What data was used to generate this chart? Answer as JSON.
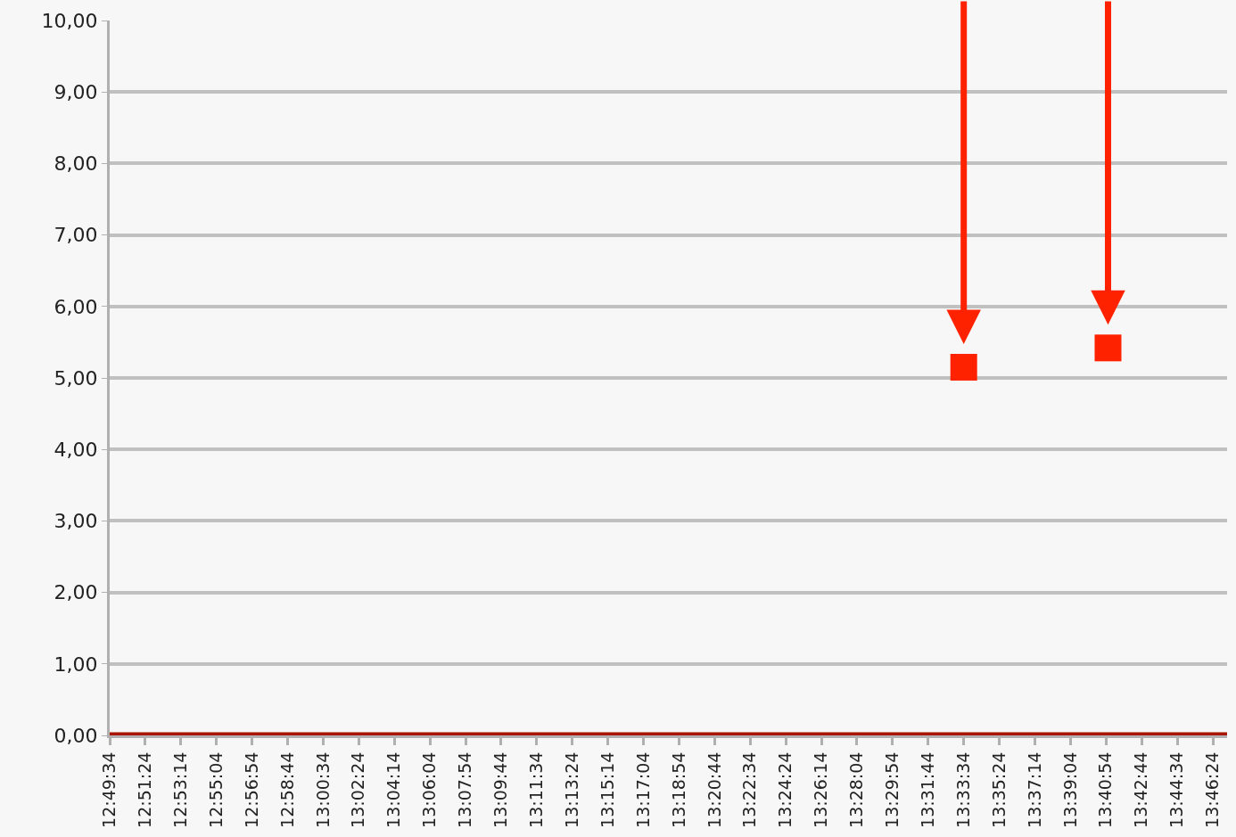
{
  "chart_data": {
    "type": "scatter",
    "series": [
      {
        "type": "line",
        "color": "#aa1500",
        "marker": "none",
        "line_style": "solid",
        "x": [
          12.82611,
          13.78556
        ],
        "values": [
          0,
          0
        ]
      },
      {
        "color": "#ff2200",
        "marker": "square",
        "x": [
          13.55944,
          13.68333
        ],
        "values": [
          5.15,
          5.42
        ]
      }
    ],
    "xlim": [
      12.82611,
      13.78556
    ],
    "xticks": [
      {
        "value": 12.82611,
        "label": "12:49:34"
      },
      {
        "value": 12.85667,
        "label": "12:51:24"
      },
      {
        "value": 12.88722,
        "label": "12:53:14"
      },
      {
        "value": 12.91778,
        "label": "12:55:04"
      },
      {
        "value": 12.94833,
        "label": "12:56:54"
      },
      {
        "value": 12.97889,
        "label": "12:58:44"
      },
      {
        "value": 13.00944,
        "label": "13:00:34"
      },
      {
        "value": 13.04,
        "label": "13:02:24"
      },
      {
        "value": 13.07056,
        "label": "13:04:14"
      },
      {
        "value": 13.10111,
        "label": "13:06:04"
      },
      {
        "value": 13.13167,
        "label": "13:07:54"
      },
      {
        "value": 13.16222,
        "label": "13:09:44"
      },
      {
        "value": 13.19278,
        "label": "13:11:34"
      },
      {
        "value": 13.22333,
        "label": "13:13:24"
      },
      {
        "value": 13.25389,
        "label": "13:15:14"
      },
      {
        "value": 13.28444,
        "label": "13:17:04"
      },
      {
        "value": 13.315,
        "label": "13:18:54"
      },
      {
        "value": 13.34556,
        "label": "13:20:44"
      },
      {
        "value": 13.37611,
        "label": "13:22:34"
      },
      {
        "value": 13.40667,
        "label": "13:24:24"
      },
      {
        "value": 13.43722,
        "label": "13:26:14"
      },
      {
        "value": 13.46778,
        "label": "13:28:04"
      },
      {
        "value": 13.49833,
        "label": "13:29:54"
      },
      {
        "value": 13.52889,
        "label": "13:31:44"
      },
      {
        "value": 13.55944,
        "label": "13:33:34"
      },
      {
        "value": 13.59,
        "label": "13:35:24"
      },
      {
        "value": 13.62056,
        "label": "13:37:14"
      },
      {
        "value": 13.65111,
        "label": "13:39:04"
      },
      {
        "value": 13.68167,
        "label": "13:40:54"
      },
      {
        "value": 13.71222,
        "label": "13:42:44"
      },
      {
        "value": 13.74278,
        "label": "13:44:34"
      },
      {
        "value": 13.77333,
        "label": "13:46:24"
      }
    ],
    "ylim": [
      0,
      10
    ],
    "yticks": [
      {
        "value": 0,
        "label": "0,00"
      },
      {
        "value": 1,
        "label": "1,00"
      },
      {
        "value": 2,
        "label": "2,00"
      },
      {
        "value": 3,
        "label": "3,00"
      },
      {
        "value": 4,
        "label": "4,00"
      },
      {
        "value": 5,
        "label": "5,00"
      },
      {
        "value": 6,
        "label": "6,00"
      },
      {
        "value": 7,
        "label": "7,00"
      },
      {
        "value": 8,
        "label": "8,00"
      },
      {
        "value": 9,
        "label": "9,00"
      },
      {
        "value": 10,
        "label": "10,00"
      }
    ],
    "grid": "y"
  }
}
